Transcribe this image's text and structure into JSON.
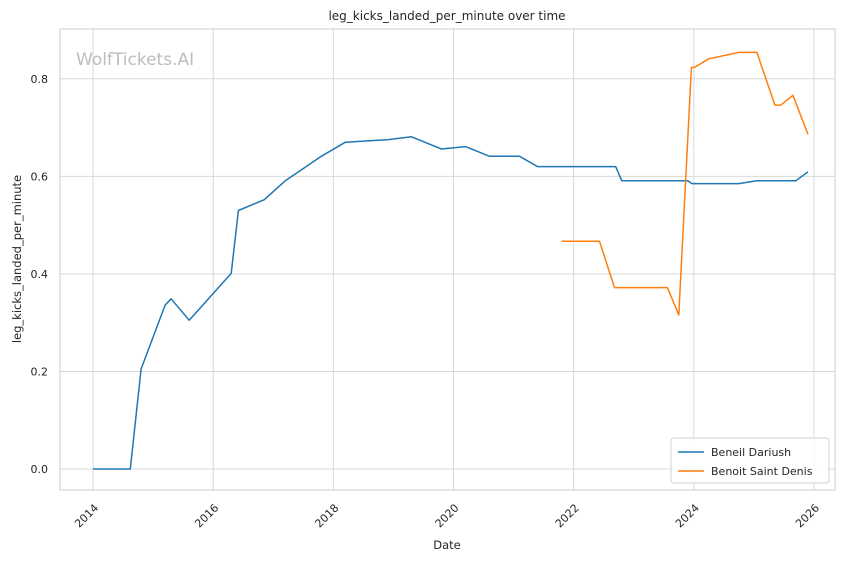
{
  "chart_data": {
    "type": "line",
    "title": "leg_kicks_landed_per_minute over time",
    "xlabel": "Date",
    "ylabel": "leg_kicks_landed_per_minute",
    "watermark": "WolfTickets.AI",
    "xlim": [
      2013.45,
      2026.35
    ],
    "ylim": [
      -0.043,
      0.902
    ],
    "x_ticks": [
      2014,
      2016,
      2018,
      2020,
      2022,
      2024,
      2026
    ],
    "x_tick_labels": [
      "2014",
      "2016",
      "2018",
      "2020",
      "2022",
      "2024",
      "2026"
    ],
    "y_ticks": [
      0.0,
      0.2,
      0.4,
      0.6,
      0.8
    ],
    "y_tick_labels": [
      "0.0",
      "0.2",
      "0.4",
      "0.6",
      "0.8"
    ],
    "grid": true,
    "legend_position": "lower-right",
    "series": [
      {
        "name": "Beneil Dariush",
        "color": "#1f77b4",
        "points": [
          [
            2014.0,
            0.0
          ],
          [
            2014.62,
            0.0
          ],
          [
            2014.8,
            0.205
          ],
          [
            2015.2,
            0.336
          ],
          [
            2015.3,
            0.349
          ],
          [
            2015.6,
            0.305
          ],
          [
            2016.3,
            0.401
          ],
          [
            2016.42,
            0.53
          ],
          [
            2016.85,
            0.552
          ],
          [
            2017.2,
            0.591
          ],
          [
            2017.8,
            0.641
          ],
          [
            2018.2,
            0.67
          ],
          [
            2018.9,
            0.675
          ],
          [
            2019.3,
            0.681
          ],
          [
            2019.8,
            0.656
          ],
          [
            2020.2,
            0.661
          ],
          [
            2020.6,
            0.641
          ],
          [
            2021.1,
            0.641
          ],
          [
            2021.4,
            0.62
          ],
          [
            2022.7,
            0.62
          ],
          [
            2022.8,
            0.591
          ],
          [
            2023.9,
            0.591
          ],
          [
            2023.97,
            0.585
          ],
          [
            2024.75,
            0.585
          ],
          [
            2025.05,
            0.591
          ],
          [
            2025.7,
            0.591
          ],
          [
            2025.9,
            0.609
          ]
        ]
      },
      {
        "name": "Benoit Saint Denis",
        "color": "#ff7f0e",
        "points": [
          [
            2021.8,
            0.467
          ],
          [
            2022.43,
            0.467
          ],
          [
            2022.68,
            0.372
          ],
          [
            2023.5,
            0.372
          ],
          [
            2023.56,
            0.372
          ],
          [
            2023.75,
            0.316
          ],
          [
            2023.96,
            0.823
          ],
          [
            2024.02,
            0.824
          ],
          [
            2024.25,
            0.841
          ],
          [
            2024.75,
            0.854
          ],
          [
            2025.05,
            0.854
          ],
          [
            2025.35,
            0.746
          ],
          [
            2025.45,
            0.746
          ],
          [
            2025.65,
            0.766
          ],
          [
            2025.9,
            0.686
          ]
        ]
      }
    ]
  }
}
